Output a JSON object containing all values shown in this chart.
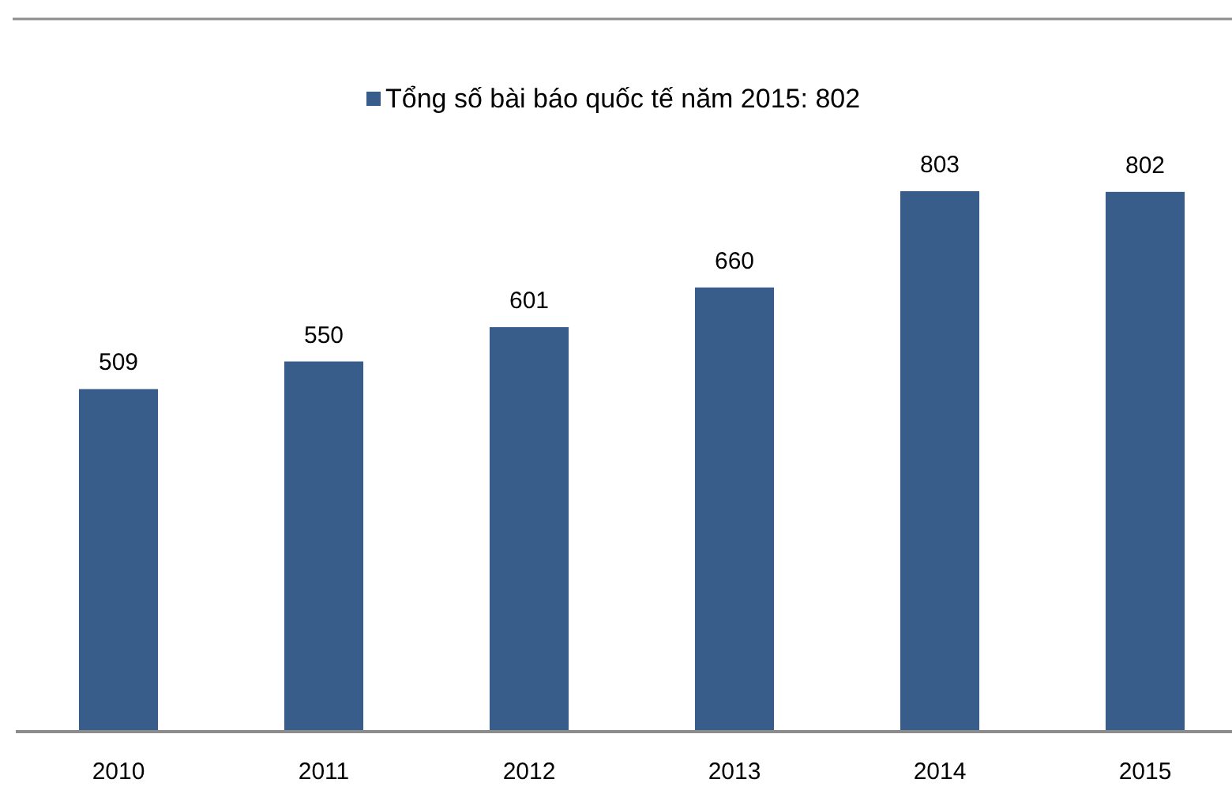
{
  "chart_data": {
    "type": "bar",
    "categories": [
      "2010",
      "2011",
      "2012",
      "2013",
      "2014",
      "2015"
    ],
    "series": [
      {
        "name": "Tổng số bài báo quốc tế năm 2015: 802",
        "color": "#385d8a",
        "values": [
          509,
          550,
          601,
          660,
          803,
          802
        ]
      }
    ],
    "data_labels": true,
    "legend": "top"
  }
}
